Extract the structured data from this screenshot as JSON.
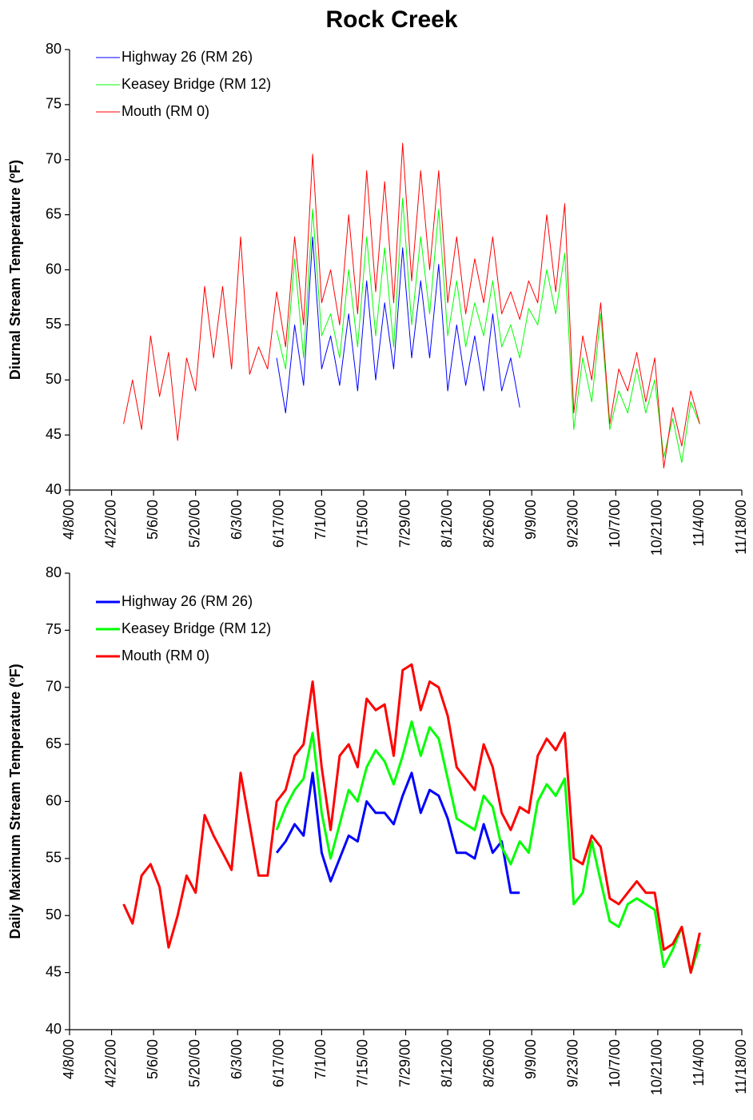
{
  "chart_data": [
    {
      "type": "line",
      "title": "Rock Creek",
      "ylabel": "Diurnal Stream Temperature (ºF)",
      "x": [
        "4/26/00",
        "4/29/00",
        "5/2/00",
        "5/5/00",
        "5/8/00",
        "5/11/00",
        "5/14/00",
        "5/17/00",
        "5/20/00",
        "5/23/00",
        "5/26/00",
        "5/29/00",
        "6/1/00",
        "6/4/00",
        "6/7/00",
        "6/10/00",
        "6/13/00",
        "6/16/00",
        "6/19/00",
        "6/22/00",
        "6/25/00",
        "6/28/00",
        "7/1/00",
        "7/4/00",
        "7/7/00",
        "7/10/00",
        "7/13/00",
        "7/16/00",
        "7/19/00",
        "7/22/00",
        "7/25/00",
        "7/28/00",
        "7/31/00",
        "8/3/00",
        "8/6/00",
        "8/9/00",
        "8/12/00",
        "8/15/00",
        "8/18/00",
        "8/21/00",
        "8/24/00",
        "8/27/00",
        "8/30/00",
        "9/2/00",
        "9/5/00",
        "9/8/00",
        "9/11/00",
        "9/14/00",
        "9/17/00",
        "9/20/00",
        "9/23/00",
        "9/26/00",
        "9/29/00",
        "10/2/00",
        "10/5/00",
        "10/8/00",
        "10/11/00",
        "10/14/00",
        "10/17/00",
        "10/20/00",
        "10/23/00",
        "10/26/00",
        "10/29/00",
        "11/1/00",
        "11/4/00"
      ],
      "series": [
        {
          "name": "Highway 26 (RM 26)",
          "color": "#0000ff",
          "values": [
            null,
            null,
            null,
            null,
            null,
            null,
            null,
            null,
            null,
            null,
            null,
            null,
            null,
            null,
            null,
            null,
            null,
            52,
            47,
            55,
            49.5,
            63,
            51,
            54,
            49.5,
            56,
            49,
            59,
            50,
            57,
            51,
            62,
            52,
            59,
            52,
            60.5,
            49,
            55,
            49.5,
            54,
            49,
            56,
            49,
            52,
            47.5,
            null,
            null,
            null,
            null,
            null,
            null,
            null,
            null,
            null,
            null,
            null,
            null,
            null,
            null,
            null,
            null,
            null,
            null,
            null,
            null
          ]
        },
        {
          "name": "Keasey Bridge (RM 12)",
          "color": "#00ff00",
          "values": [
            null,
            null,
            null,
            null,
            null,
            null,
            null,
            null,
            null,
            null,
            null,
            null,
            null,
            null,
            null,
            null,
            null,
            54.5,
            51,
            61,
            52,
            65.5,
            54,
            56,
            52,
            60,
            53,
            63,
            54,
            62,
            53,
            66.5,
            55,
            63,
            56,
            65.5,
            54,
            59,
            53,
            57,
            54,
            59,
            53,
            55,
            52,
            56.5,
            55,
            60,
            56,
            61.5,
            45.5,
            52,
            48,
            56,
            45.5,
            49,
            47,
            51,
            47,
            50,
            43,
            46.5,
            42.5,
            48,
            46
          ]
        },
        {
          "name": "Mouth (RM 0)",
          "color": "#ff0000",
          "values": [
            46,
            50,
            45.5,
            54,
            48.5,
            52.5,
            44.5,
            52,
            49,
            58.5,
            52,
            58.5,
            51,
            63,
            50.5,
            53,
            51,
            58,
            53,
            63,
            55,
            70.5,
            57,
            60,
            55,
            65,
            56,
            69,
            58,
            68,
            57,
            71.5,
            59,
            69,
            60,
            69,
            57,
            63,
            56,
            61,
            57,
            63,
            56,
            58,
            55.5,
            59,
            57,
            65,
            58,
            66,
            47,
            54,
            50,
            57,
            46,
            51,
            49,
            52.5,
            48,
            52,
            42,
            47.5,
            44,
            49,
            46
          ]
        }
      ],
      "linewidth": 1,
      "ylim": [
        40,
        80
      ],
      "yticks": [
        40,
        45,
        50,
        55,
        60,
        65,
        70,
        75,
        80
      ],
      "xlim": [
        "4/8/00",
        "11/18/00"
      ],
      "xticks": [
        "4/8/00",
        "4/22/00",
        "5/6/00",
        "5/20/00",
        "6/3/00",
        "6/17/00",
        "7/1/00",
        "7/15/00",
        "7/29/00",
        "8/12/00",
        "8/26/00",
        "9/9/00",
        "9/23/00",
        "10/7/00",
        "10/21/00",
        "11/4/00",
        "11/18/00"
      ],
      "legend": "upper left"
    },
    {
      "type": "line",
      "ylabel": "Daily Maximum Stream Temperature (ºF)",
      "x": [
        "4/26/00",
        "4/29/00",
        "5/2/00",
        "5/5/00",
        "5/8/00",
        "5/11/00",
        "5/14/00",
        "5/17/00",
        "5/20/00",
        "5/23/00",
        "5/26/00",
        "5/29/00",
        "6/1/00",
        "6/4/00",
        "6/7/00",
        "6/10/00",
        "6/13/00",
        "6/16/00",
        "6/19/00",
        "6/22/00",
        "6/25/00",
        "6/28/00",
        "7/1/00",
        "7/4/00",
        "7/7/00",
        "7/10/00",
        "7/13/00",
        "7/16/00",
        "7/19/00",
        "7/22/00",
        "7/25/00",
        "7/28/00",
        "7/31/00",
        "8/3/00",
        "8/6/00",
        "8/9/00",
        "8/12/00",
        "8/15/00",
        "8/18/00",
        "8/21/00",
        "8/24/00",
        "8/27/00",
        "8/30/00",
        "9/2/00",
        "9/5/00",
        "9/8/00",
        "9/11/00",
        "9/14/00",
        "9/17/00",
        "9/20/00",
        "9/23/00",
        "9/26/00",
        "9/29/00",
        "10/2/00",
        "10/5/00",
        "10/8/00",
        "10/11/00",
        "10/14/00",
        "10/17/00",
        "10/20/00",
        "10/23/00",
        "10/26/00",
        "10/29/00",
        "11/1/00",
        "11/4/00"
      ],
      "series": [
        {
          "name": "Highway 26 (RM 26)",
          "color": "#0000ff",
          "values": [
            null,
            null,
            null,
            null,
            null,
            null,
            null,
            null,
            null,
            null,
            null,
            null,
            null,
            null,
            null,
            null,
            null,
            55.5,
            56.5,
            58,
            57,
            62.5,
            55.5,
            53,
            55,
            57,
            56.5,
            60,
            59,
            59,
            58,
            60.5,
            62.5,
            59,
            61,
            60.5,
            58.5,
            55.5,
            55.5,
            55,
            58,
            55.5,
            56.5,
            52,
            52,
            null,
            null,
            null,
            null,
            null,
            null,
            null,
            null,
            null,
            null,
            null,
            null,
            null,
            null,
            null,
            null,
            null,
            null,
            null,
            null
          ]
        },
        {
          "name": "Keasey Bridge (RM 12)",
          "color": "#00ff00",
          "values": [
            null,
            null,
            null,
            null,
            null,
            null,
            null,
            null,
            null,
            null,
            null,
            null,
            null,
            null,
            null,
            null,
            null,
            57.5,
            59.5,
            61,
            62,
            66,
            59,
            55,
            58,
            61,
            60,
            63,
            64.5,
            63.5,
            61.5,
            64,
            67,
            64,
            66.5,
            65.5,
            62,
            58.5,
            58,
            57.5,
            60.5,
            59.5,
            56,
            54.5,
            56.5,
            55.5,
            60,
            61.5,
            60.5,
            62,
            51,
            52,
            56.5,
            53,
            49.5,
            49,
            51,
            51.5,
            51,
            50.5,
            45.5,
            47,
            49,
            45,
            47.5
          ]
        },
        {
          "name": "Mouth (RM 0)",
          "color": "#ff0000",
          "values": [
            51,
            49.3,
            53.5,
            54.5,
            52.5,
            47.2,
            50,
            53.5,
            52,
            58.8,
            57,
            55.5,
            54,
            62.5,
            58,
            53.5,
            53.5,
            60,
            61,
            64,
            65,
            70.5,
            63,
            57.5,
            64,
            65,
            63,
            69,
            68,
            68.5,
            64,
            71.5,
            72,
            68,
            70.5,
            70,
            67.5,
            63,
            62,
            61,
            65,
            63,
            59,
            57.5,
            59.5,
            59,
            64,
            65.5,
            64.5,
            66,
            55,
            54.5,
            57,
            56,
            51.5,
            51,
            52,
            53,
            52,
            52,
            47,
            47.5,
            49,
            45,
            48.5
          ]
        }
      ],
      "linewidth": 3,
      "ylim": [
        40,
        80
      ],
      "yticks": [
        40,
        45,
        50,
        55,
        60,
        65,
        70,
        75,
        80
      ],
      "xlim": [
        "4/8/00",
        "11/18/00"
      ],
      "xticks": [
        "4/8/00",
        "4/22/00",
        "5/6/00",
        "5/20/00",
        "6/3/00",
        "6/17/00",
        "7/1/00",
        "7/15/00",
        "7/29/00",
        "8/12/00",
        "8/26/00",
        "9/9/00",
        "9/23/00",
        "10/7/00",
        "10/21/00",
        "11/4/00",
        "11/18/00"
      ],
      "legend": "upper left"
    }
  ]
}
